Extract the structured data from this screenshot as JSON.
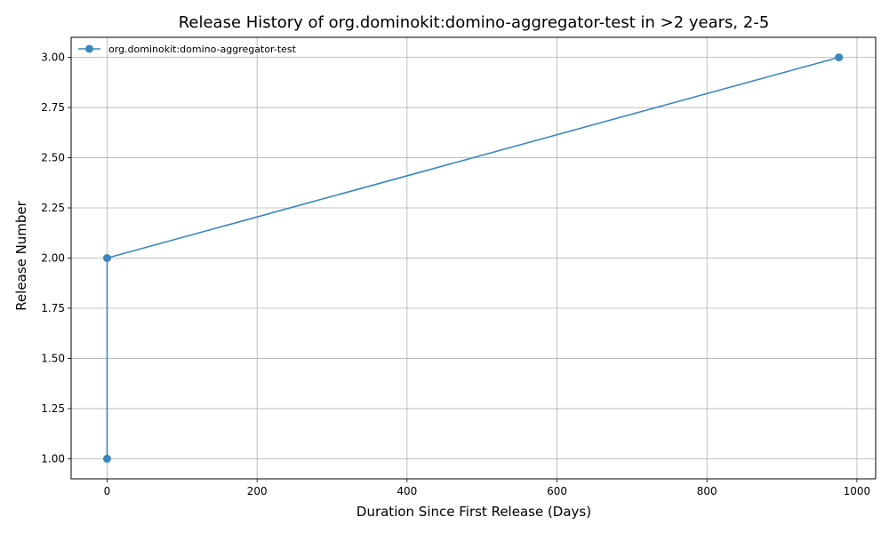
{
  "chart_data": {
    "type": "line",
    "title": "Release History of org.dominokit:domino-aggregator-test in >2 years, 2-5",
    "xlabel": "Duration Since First Release (Days)",
    "ylabel": "Release Number",
    "xlim": [
      -48,
      1025
    ],
    "ylim": [
      0.9,
      3.1
    ],
    "x_ticks": [
      0,
      200,
      400,
      600,
      800,
      1000
    ],
    "y_ticks": [
      1.0,
      1.25,
      1.5,
      1.75,
      2.0,
      2.25,
      2.5,
      2.75,
      3.0
    ],
    "y_tick_labels": [
      "1.00",
      "1.25",
      "1.50",
      "1.75",
      "2.00",
      "2.25",
      "2.50",
      "2.75",
      "3.00"
    ],
    "grid": true,
    "legend_position": "top-left",
    "series": [
      {
        "name": "org.dominokit:domino-aggregator-test",
        "color": "#3a87bd",
        "marker": "circle",
        "points": [
          {
            "x": 0,
            "y": 1
          },
          {
            "x": 0,
            "y": 2
          },
          {
            "x": 976,
            "y": 3
          }
        ]
      }
    ]
  }
}
